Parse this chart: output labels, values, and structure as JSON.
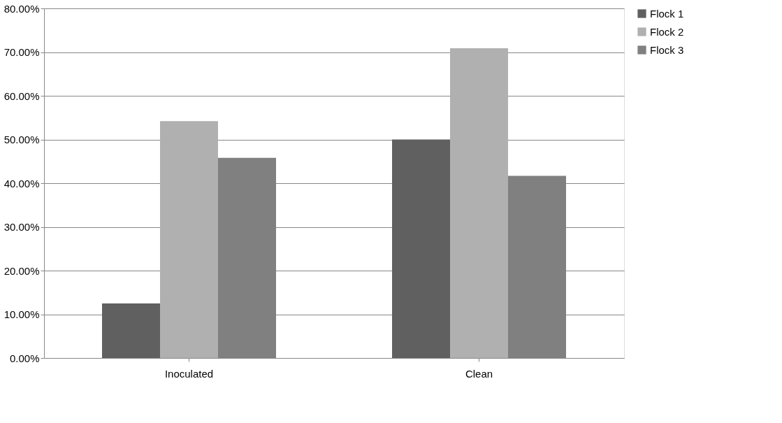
{
  "chart_data": {
    "type": "bar",
    "categories": [
      "Inoculated",
      "Clean"
    ],
    "series": [
      {
        "name": "Flock 1",
        "color": "#606060",
        "values": [
          12.5,
          50.0
        ]
      },
      {
        "name": "Flock 2",
        "color": "#b0b0b0",
        "values": [
          54.2,
          70.9
        ]
      },
      {
        "name": "Flock 3",
        "color": "#808080",
        "values": [
          45.8,
          41.7
        ]
      }
    ],
    "ylim": [
      0,
      80
    ],
    "yticks": [
      {
        "value": 0,
        "label": "0.00%"
      },
      {
        "value": 10,
        "label": "10.00%"
      },
      {
        "value": 20,
        "label": "20.00%"
      },
      {
        "value": 30,
        "label": "30.00%"
      },
      {
        "value": 40,
        "label": "40.00%"
      },
      {
        "value": 50,
        "label": "50.00%"
      },
      {
        "value": 60,
        "label": "60.00%"
      },
      {
        "value": 70,
        "label": "70.00%"
      },
      {
        "value": 80,
        "label": "80.00%"
      }
    ],
    "grid": "y",
    "legend": "right"
  }
}
